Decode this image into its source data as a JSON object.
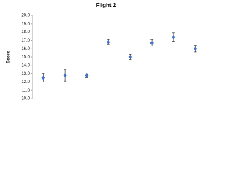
{
  "chart_data": {
    "type": "errorbar",
    "title": "Flight 2",
    "y_label": "Score",
    "categories": [
      null,
      null,
      null,
      null,
      null,
      null,
      null,
      null
    ],
    "values": [
      12.5,
      12.8,
      12.8,
      16.8,
      15.0,
      16.7,
      17.4,
      16.0
    ],
    "errors": [
      0.5,
      0.7,
      0.3,
      0.3,
      0.3,
      0.4,
      0.5,
      0.4
    ],
    "color": "#4472c4",
    "ylim": [
      10,
      20
    ],
    "yticks": [
      {
        "value": 10,
        "label": "10.0"
      },
      {
        "value": 11,
        "label": "11.0"
      },
      {
        "value": 12,
        "label": "12.0"
      },
      {
        "value": 13,
        "label": "13.0"
      },
      {
        "value": 14,
        "label": "14.0"
      },
      {
        "value": 15,
        "label": "15.0"
      },
      {
        "value": 16,
        "label": "16.0"
      },
      {
        "value": 17,
        "label": "17.0"
      },
      {
        "value": 18,
        "label": "18.0"
      },
      {
        "value": 19,
        "label": "19.0"
      },
      {
        "value": 20,
        "label": "20.0"
      }
    ],
    "grid": false
  }
}
